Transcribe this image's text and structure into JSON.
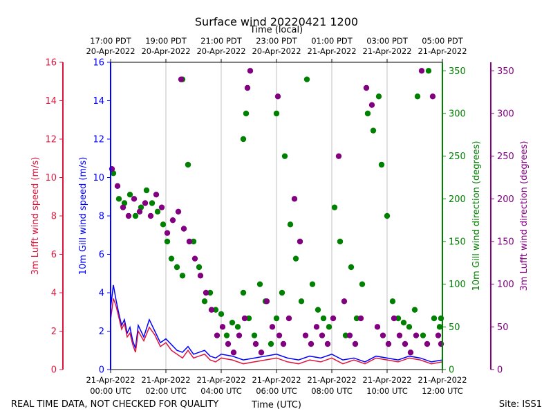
{
  "chart_data": {
    "type": "scatter",
    "title": "Surface wind 20220421 1200",
    "top_axis_label": "Time (local)",
    "bottom_axis_label": "Time (UTC)",
    "footer_left": "REAL TIME DATA, NOT CHECKED FOR QUALITY",
    "footer_right": "Site: ISS1",
    "x_range_hours_utc": [
      0,
      12
    ],
    "bottom_ticks": [
      {
        "hour": 0,
        "line1": "21-Apr-2022",
        "line2": "00:00 UTC"
      },
      {
        "hour": 2,
        "line1": "21-Apr-2022",
        "line2": "02:00 UTC"
      },
      {
        "hour": 4,
        "line1": "21-Apr-2022",
        "line2": "04:00 UTC"
      },
      {
        "hour": 6,
        "line1": "21-Apr-2022",
        "line2": "06:00 UTC"
      },
      {
        "hour": 8,
        "line1": "21-Apr-2022",
        "line2": "08:00 UTC"
      },
      {
        "hour": 10,
        "line1": "21-Apr-2022",
        "line2": "10:00 UTC"
      },
      {
        "hour": 12,
        "line1": "21-Apr-2022",
        "line2": "12:00 UTC"
      }
    ],
    "top_ticks": [
      {
        "hour": 0,
        "line1": "17:00 PDT",
        "line2": "20-Apr-2022"
      },
      {
        "hour": 2,
        "line1": "19:00 PDT",
        "line2": "20-Apr-2022"
      },
      {
        "hour": 4,
        "line1": "21:00 PDT",
        "line2": "20-Apr-2022"
      },
      {
        "hour": 6,
        "line1": "23:00 PDT",
        "line2": "20-Apr-2022"
      },
      {
        "hour": 8,
        "line1": "01:00 PDT",
        "line2": "21-Apr-2022"
      },
      {
        "hour": 10,
        "line1": "03:00 PDT",
        "line2": "21-Apr-2022"
      },
      {
        "hour": 12,
        "line1": "05:00 PDT",
        "line2": "21-Apr-2022"
      }
    ],
    "axes": {
      "lufft_speed": {
        "label": "3m Lufft wind speed (m/s)",
        "range": [
          0,
          16
        ],
        "ticks": [
          0,
          2,
          4,
          6,
          8,
          10,
          12,
          14,
          16
        ],
        "color": "#dc143c"
      },
      "gill_speed": {
        "label": "10m Gill wind speed (m/s)",
        "range": [
          0,
          16
        ],
        "ticks": [
          0,
          2,
          4,
          6,
          8,
          10,
          12,
          14,
          16
        ],
        "color": "#0000ff"
      },
      "gill_dir": {
        "label": "10m Gill wind direction (degrees)",
        "range": [
          0,
          360
        ],
        "ticks": [
          0,
          50,
          100,
          150,
          200,
          250,
          300,
          350
        ],
        "color": "#008000"
      },
      "lufft_dir": {
        "label": "3m Lufft wind direction (degrees)",
        "range": [
          0,
          360
        ],
        "ticks": [
          0,
          50,
          100,
          150,
          200,
          250,
          300,
          350
        ],
        "color": "#800080"
      }
    },
    "series": [
      {
        "name": "10m Gill wind speed",
        "kind": "line",
        "axis": "gill_speed",
        "color": "#0000ff",
        "x": [
          0.0,
          0.1,
          0.2,
          0.3,
          0.4,
          0.5,
          0.6,
          0.7,
          0.8,
          0.9,
          1.0,
          1.2,
          1.4,
          1.6,
          1.8,
          2.0,
          2.2,
          2.4,
          2.6,
          2.8,
          3.0,
          3.2,
          3.4,
          3.6,
          3.8,
          4.0,
          4.4,
          4.8,
          5.2,
          5.6,
          6.0,
          6.4,
          6.8,
          7.2,
          7.6,
          8.0,
          8.4,
          8.8,
          9.2,
          9.6,
          10.0,
          10.4,
          10.8,
          11.2,
          11.6,
          12.0
        ],
        "y": [
          3.2,
          4.4,
          3.6,
          2.9,
          2.3,
          2.6,
          1.9,
          2.2,
          1.5,
          1.1,
          2.3,
          1.7,
          2.6,
          2.0,
          1.4,
          1.6,
          1.3,
          1.0,
          0.9,
          1.2,
          0.8,
          0.9,
          1.0,
          0.7,
          0.6,
          0.8,
          0.7,
          0.5,
          0.6,
          0.7,
          0.8,
          0.6,
          0.5,
          0.7,
          0.6,
          0.8,
          0.5,
          0.6,
          0.4,
          0.7,
          0.6,
          0.5,
          0.7,
          0.6,
          0.4,
          0.5
        ]
      },
      {
        "name": "3m Lufft wind speed",
        "kind": "line",
        "axis": "lufft_speed",
        "color": "#dc143c",
        "x": [
          0.0,
          0.1,
          0.2,
          0.3,
          0.4,
          0.5,
          0.6,
          0.7,
          0.8,
          0.9,
          1.0,
          1.2,
          1.4,
          1.6,
          1.8,
          2.0,
          2.2,
          2.4,
          2.6,
          2.8,
          3.0,
          3.2,
          3.4,
          3.6,
          3.8,
          4.0,
          4.4,
          4.8,
          5.2,
          5.6,
          6.0,
          6.4,
          6.8,
          7.2,
          7.6,
          8.0,
          8.4,
          8.8,
          9.2,
          9.6,
          10.0,
          10.4,
          10.8,
          11.2,
          11.6,
          12.0
        ],
        "y": [
          2.6,
          3.7,
          3.3,
          2.7,
          2.1,
          2.4,
          1.7,
          1.9,
          1.3,
          0.9,
          2.0,
          1.5,
          2.2,
          1.8,
          1.2,
          1.4,
          1.0,
          0.8,
          0.6,
          1.0,
          0.6,
          0.7,
          0.8,
          0.5,
          0.4,
          0.6,
          0.5,
          0.3,
          0.4,
          0.5,
          0.6,
          0.4,
          0.3,
          0.5,
          0.4,
          0.6,
          0.3,
          0.5,
          0.3,
          0.6,
          0.5,
          0.4,
          0.6,
          0.5,
          0.3,
          0.4
        ]
      },
      {
        "name": "10m Gill wind direction",
        "kind": "scatter",
        "axis": "gill_dir",
        "color": "#008000",
        "x": [
          0.1,
          0.3,
          0.5,
          0.7,
          0.9,
          1.1,
          1.3,
          1.5,
          1.7,
          1.9,
          2.05,
          2.2,
          2.4,
          2.6,
          2.6,
          2.8,
          3.0,
          3.2,
          3.4,
          3.6,
          3.8,
          4.0,
          4.2,
          4.4,
          4.6,
          4.8,
          4.8,
          4.9,
          5.0,
          5.2,
          5.4,
          5.6,
          5.8,
          6.0,
          6.0,
          6.2,
          6.3,
          6.5,
          6.7,
          6.9,
          7.1,
          7.3,
          7.5,
          7.7,
          7.9,
          8.1,
          8.3,
          8.5,
          8.7,
          8.9,
          9.1,
          9.3,
          9.5,
          9.7,
          9.8,
          10.0,
          10.2,
          10.4,
          10.6,
          10.8,
          11.0,
          11.1,
          11.3,
          11.5,
          11.7,
          11.9,
          11.95
        ],
        "y": [
          230,
          200,
          195,
          205,
          180,
          190,
          210,
          195,
          185,
          170,
          150,
          130,
          120,
          110,
          340,
          240,
          150,
          120,
          80,
          90,
          70,
          65,
          40,
          55,
          50,
          90,
          270,
          300,
          60,
          40,
          100,
          80,
          30,
          300,
          60,
          90,
          250,
          170,
          130,
          80,
          340,
          100,
          70,
          60,
          50,
          190,
          150,
          40,
          120,
          60,
          100,
          300,
          280,
          320,
          240,
          180,
          80,
          60,
          55,
          50,
          70,
          320,
          40,
          350,
          60,
          50,
          60
        ]
      },
      {
        "name": "3m Lufft wind direction",
        "kind": "scatter",
        "axis": "lufft_dir",
        "color": "#800080",
        "x": [
          0.05,
          0.25,
          0.45,
          0.65,
          0.85,
          1.05,
          1.25,
          1.45,
          1.65,
          1.85,
          2.05,
          2.25,
          2.45,
          2.55,
          2.65,
          2.85,
          3.05,
          3.25,
          3.45,
          3.65,
          3.85,
          4.05,
          4.25,
          4.45,
          4.65,
          4.85,
          4.95,
          5.05,
          5.25,
          5.45,
          5.65,
          5.85,
          6.05,
          6.1,
          6.25,
          6.45,
          6.65,
          6.85,
          7.05,
          7.25,
          7.45,
          7.65,
          7.85,
          8.05,
          8.25,
          8.45,
          8.65,
          8.85,
          9.05,
          9.25,
          9.45,
          9.65,
          9.85,
          10.05,
          10.25,
          10.45,
          10.65,
          10.85,
          11.05,
          11.25,
          11.45,
          11.65,
          11.85,
          11.95
        ],
        "y": [
          235,
          215,
          190,
          180,
          200,
          185,
          195,
          180,
          205,
          190,
          160,
          175,
          185,
          340,
          165,
          150,
          130,
          110,
          90,
          70,
          40,
          50,
          30,
          20,
          40,
          60,
          330,
          350,
          30,
          20,
          80,
          50,
          320,
          40,
          30,
          60,
          200,
          150,
          40,
          30,
          50,
          40,
          30,
          60,
          250,
          80,
          40,
          30,
          60,
          330,
          310,
          50,
          40,
          30,
          60,
          40,
          30,
          20,
          40,
          350,
          30,
          320,
          40,
          30
        ]
      }
    ]
  }
}
